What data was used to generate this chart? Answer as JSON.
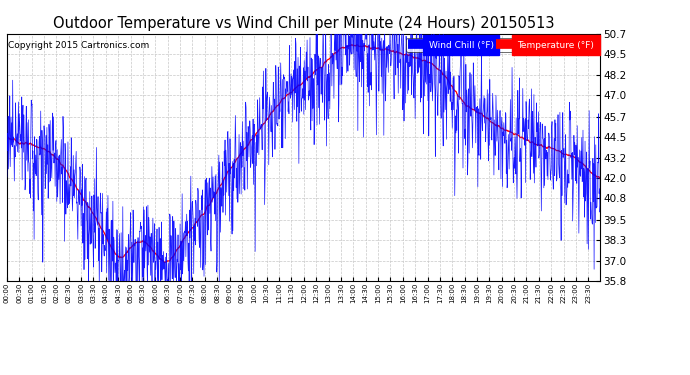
{
  "title": "Outdoor Temperature vs Wind Chill per Minute (24 Hours) 20150513",
  "copyright": "Copyright 2015 Cartronics.com",
  "ylim": [
    35.8,
    50.7
  ],
  "yticks": [
    35.8,
    37.0,
    38.3,
    39.5,
    40.8,
    42.0,
    43.2,
    44.5,
    45.7,
    47.0,
    48.2,
    49.5,
    50.7
  ],
  "temp_color": "#ff0000",
  "wind_color": "#0000ff",
  "legend_wind_bg": "#0000ff",
  "legend_temp_bg": "#ff0000",
  "bg_color": "#ffffff",
  "plot_bg_color": "#ffffff",
  "grid_color": "#c8c8c8",
  "title_fontsize": 10.5,
  "copyright_fontsize": 6.5
}
